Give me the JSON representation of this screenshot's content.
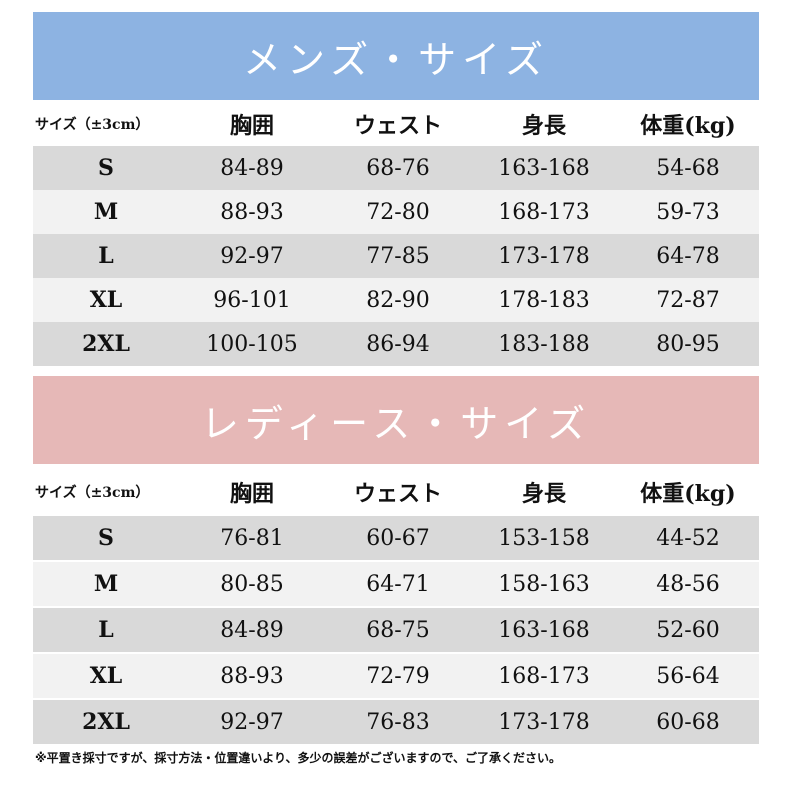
{
  "men": {
    "title": "メンズ・サイズ",
    "headers": [
      "サイズ（±3cm）",
      "胸囲",
      "ウェスト",
      "身長",
      "体重(kg)"
    ],
    "rows": [
      [
        "S",
        "84-89",
        "68-76",
        "163-168",
        "54-68"
      ],
      [
        "M",
        "88-93",
        "72-80",
        "168-173",
        "59-73"
      ],
      [
        "L",
        "92-97",
        "77-85",
        "173-178",
        "64-78"
      ],
      [
        "XL",
        "96-101",
        "82-90",
        "178-183",
        "72-87"
      ],
      [
        "2XL",
        "100-105",
        "86-94",
        "183-188",
        "80-95"
      ]
    ]
  },
  "women": {
    "title": "レディース・サイズ",
    "headers": [
      "サイズ（±3cm）",
      "胸囲",
      "ウェスト",
      "身長",
      "体重(kg)"
    ],
    "rows": [
      [
        "S",
        "76-81",
        "60-67",
        "153-158",
        "44-52"
      ],
      [
        "M",
        "80-85",
        "64-71",
        "158-163",
        "48-56"
      ],
      [
        "L",
        "84-89",
        "68-75",
        "163-168",
        "52-60"
      ],
      [
        "XL",
        "88-93",
        "72-79",
        "168-173",
        "56-64"
      ],
      [
        "2XL",
        "92-97",
        "76-83",
        "173-178",
        "60-68"
      ]
    ]
  },
  "note": "※平置き採寸ですが、採寸方法・位置違いより、多少の誤差がございますので、ご了承ください。",
  "colors": {
    "men_banner": "#8db3e2",
    "women_banner": "#e6b8b7",
    "row_dark": "#d9d9d9",
    "row_light": "#f2f2f2"
  }
}
